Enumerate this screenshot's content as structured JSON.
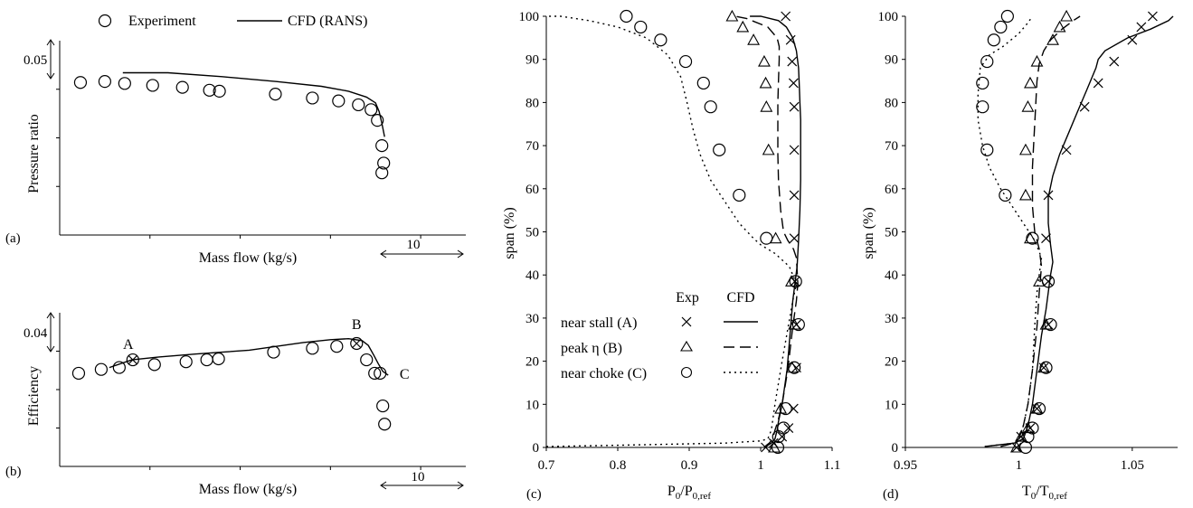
{
  "legend_top": {
    "experiment_label": "Experiment",
    "cfd_label": "CFD (RANS)"
  },
  "chart_data": [
    {
      "id": "a",
      "type": "scatter",
      "panel_label": "(a)",
      "title": "",
      "xlabel": "Mass flow (kg/s)",
      "ylabel": "Pressure ratio",
      "scale_x": "10",
      "scale_y": "0.05",
      "xlim": [
        0,
        45
      ],
      "ylim": [
        0,
        0.2
      ],
      "grid": false,
      "series": [
        {
          "name": "Experiment",
          "marker": "circle",
          "x": [
            2.3,
            5.0,
            7.2,
            10.3,
            13.6,
            16.6,
            17.7,
            23.9,
            28.0,
            30.9,
            33.1,
            34.5,
            35.2,
            35.7,
            35.9,
            35.7
          ],
          "y": [
            0.157,
            0.158,
            0.156,
            0.154,
            0.152,
            0.149,
            0.148,
            0.145,
            0.141,
            0.138,
            0.134,
            0.129,
            0.118,
            0.092,
            0.074,
            0.064
          ]
        },
        {
          "name": "CFD (RANS)",
          "line": "solid",
          "x": [
            7.0,
            12.0,
            18.0,
            24.0,
            29.0,
            32.0,
            34.0,
            35.0,
            35.4,
            35.7,
            36.0
          ],
          "y": [
            0.167,
            0.167,
            0.163,
            0.158,
            0.153,
            0.148,
            0.142,
            0.136,
            0.127,
            0.115,
            0.101
          ]
        }
      ],
      "annotations": []
    },
    {
      "id": "b",
      "type": "scatter",
      "panel_label": "(b)",
      "title": "",
      "xlabel": "Mass flow (kg/s)",
      "ylabel": "Efficiency",
      "scale_x": "10",
      "scale_y": "0.04",
      "xlim": [
        0,
        45
      ],
      "ylim": [
        0,
        0.16
      ],
      "grid": false,
      "series": [
        {
          "name": "Experiment",
          "marker": "circle",
          "x": [
            2.1,
            4.6,
            6.6,
            8.1,
            10.5,
            14.0,
            16.3,
            17.6,
            23.7,
            28.0,
            30.7,
            32.9,
            34.0,
            34.9,
            35.5,
            35.8,
            36.0
          ],
          "y": [
            0.097,
            0.101,
            0.103,
            0.111,
            0.106,
            0.109,
            0.111,
            0.112,
            0.119,
            0.123,
            0.125,
            0.128,
            0.111,
            0.097,
            0.097,
            0.063,
            0.044
          ]
        },
        {
          "name": "CFD (RANS)",
          "line": "solid",
          "x": [
            5.5,
            8.0,
            11.0,
            15.0,
            18.0,
            21.0,
            24.0,
            27.0,
            30.0,
            32.0,
            33.5,
            34.2,
            34.8,
            35.3,
            35.8,
            36.4
          ],
          "y": [
            0.103,
            0.111,
            0.114,
            0.117,
            0.119,
            0.121,
            0.125,
            0.129,
            0.132,
            0.133,
            0.131,
            0.126,
            0.116,
            0.107,
            0.099,
            0.095
          ]
        }
      ],
      "annotations": [
        {
          "label": "A",
          "x": 8.1,
          "y": 0.111
        },
        {
          "label": "B",
          "x": 32.9,
          "y": 0.128
        },
        {
          "label": "C",
          "x": 36.4,
          "y": 0.097
        }
      ]
    },
    {
      "id": "c",
      "type": "line",
      "panel_label": "(c)",
      "title": "",
      "xlabel_main": "P",
      "xlabel_sub1": "0",
      "xlabel_mid": "/P",
      "xlabel_sub2": "0,ref",
      "ylabel": "span (%)",
      "xlim": [
        0.7,
        1.1
      ],
      "ylim": [
        0,
        100
      ],
      "xticks": [
        0.7,
        0.8,
        0.9,
        1,
        1.1
      ],
      "xtick_labels": [
        "0.7",
        "0.8",
        "0.9",
        "1",
        "1.1"
      ],
      "yticks": [
        0,
        10,
        20,
        30,
        40,
        50,
        60,
        70,
        80,
        90,
        100
      ],
      "grid": false,
      "legend": {
        "position": "lower-left",
        "exp_header": "Exp",
        "cfd_header": "CFD",
        "entries": [
          "near stall (A)",
          "peak η (B)",
          "near choke (C)"
        ]
      },
      "series": [
        {
          "name": "near stall (A)",
          "kind": "experiment",
          "marker": "x",
          "x": [
            1.035,
            1.042,
            1.044,
            1.046,
            1.047,
            1.047,
            1.047,
            1.047,
            1.048,
            1.05,
            1.05,
            1.046,
            1.039,
            1.03,
            1.018,
            1.007
          ],
          "y": [
            100,
            94.5,
            89.5,
            84.5,
            79,
            69,
            58.5,
            48.5,
            38.5,
            28.5,
            18.5,
            9,
            4.5,
            2.5,
            1,
            0
          ]
        },
        {
          "name": "peak η (B)",
          "kind": "experiment",
          "marker": "triangle",
          "x": [
            0.96,
            0.975,
            0.99,
            1.005,
            1.007,
            1.008,
            1.011,
            1.021,
            1.043,
            1.047,
            1.044,
            1.028,
            1.019
          ],
          "y": [
            100,
            97.5,
            94.5,
            89.5,
            84.5,
            79,
            69,
            48.5,
            38.5,
            28.5,
            18.5,
            9,
            0
          ]
        },
        {
          "name": "near choke (C)",
          "kind": "experiment",
          "marker": "circle",
          "x": [
            0.812,
            0.832,
            0.86,
            0.895,
            0.92,
            0.93,
            0.942,
            0.97,
            1.008,
            1.049,
            1.053,
            1.047,
            1.035,
            1.032,
            1.025,
            1.024
          ],
          "y": [
            100,
            97.5,
            94.5,
            89.5,
            84.5,
            79,
            69,
            58.5,
            48.5,
            38.5,
            28.5,
            18.5,
            9,
            4.5,
            2.5,
            0
          ]
        },
        {
          "name": "near stall (A)",
          "kind": "cfd",
          "line": "solid",
          "x": [
            1.005,
            1.01,
            1.015,
            1.02,
            1.023,
            1.025,
            1.03,
            1.037,
            1.042,
            1.045,
            1.048,
            1.051,
            1.053,
            1.055,
            1.056,
            1.056,
            1.056,
            1.055,
            1.054,
            1.053,
            1.05,
            1.045,
            1.036,
            1.025,
            1.0,
            0.985
          ],
          "y": [
            0,
            0.5,
            1,
            2,
            4,
            6,
            10,
            18,
            28,
            34,
            38,
            42,
            48,
            55,
            62,
            70,
            76,
            80,
            84,
            88,
            92,
            95,
            97.5,
            99,
            100,
            100
          ]
        },
        {
          "name": "peak η (B)",
          "kind": "cfd",
          "line": "dashed",
          "x": [
            1.005,
            1.008,
            1.012,
            1.017,
            1.02,
            1.024,
            1.03,
            1.038,
            1.045,
            1.05,
            1.052,
            1.051,
            1.05,
            1.046,
            1.038,
            1.032,
            1.028,
            1.025,
            1.024,
            1.024,
            1.024,
            1.025,
            1.026,
            1.026,
            1.023,
            1.01,
            0.98,
            0.965
          ],
          "y": [
            0,
            0.5,
            1,
            2,
            4,
            6,
            10,
            18,
            28,
            34,
            38,
            41,
            44,
            46,
            48,
            50,
            55,
            62,
            68,
            74,
            80,
            85,
            90,
            93,
            95,
            97.5,
            99.5,
            100
          ]
        },
        {
          "name": "near choke (C)",
          "kind": "cfd",
          "line": "dotted",
          "x": [
            0.7,
            0.8,
            0.95,
            1.0,
            1.01,
            1.015,
            1.02,
            1.03,
            1.045,
            1.05,
            1.04,
            1.02,
            1.0,
            0.99,
            0.97,
            0.95,
            0.93,
            0.915,
            0.905,
            0.897,
            0.888,
            0.87,
            0.84,
            0.8,
            0.76,
            0.72,
            0.7
          ],
          "y": [
            0.2,
            0.5,
            1,
            1.5,
            2,
            4,
            10,
            20,
            34,
            38,
            42,
            45,
            47,
            48.5,
            52,
            57,
            62,
            68,
            74,
            80,
            86,
            91,
            95,
            97.5,
            99,
            100,
            100
          ]
        }
      ]
    },
    {
      "id": "d",
      "type": "line",
      "panel_label": "(d)",
      "title": "",
      "xlabel_main": "T",
      "xlabel_sub1": "0",
      "xlabel_mid": "/T",
      "xlabel_sub2": "0,ref",
      "ylabel": "span (%)",
      "xlim": [
        0.95,
        1.07
      ],
      "ylim": [
        0,
        100
      ],
      "xticks": [
        0.95,
        1,
        1.05
      ],
      "xtick_labels": [
        "0.95",
        "1",
        "1.05"
      ],
      "yticks": [
        0,
        10,
        20,
        30,
        40,
        50,
        60,
        70,
        80,
        90,
        100
      ],
      "grid": false,
      "series": [
        {
          "name": "near stall (A)",
          "kind": "experiment",
          "marker": "x",
          "x": [
            1.059,
            1.054,
            1.05,
            1.042,
            1.035,
            1.029,
            1.021,
            1.013,
            1.012,
            1.013,
            1.013,
            1.011,
            1.008,
            1.005,
            1.001,
            0.999
          ],
          "y": [
            100,
            97.5,
            94.5,
            89.5,
            84.5,
            79,
            69,
            58.5,
            48.5,
            38.5,
            28.5,
            18.5,
            9,
            4.5,
            2.5,
            0
          ]
        },
        {
          "name": "peak η (B)",
          "kind": "experiment",
          "marker": "triangle",
          "x": [
            1.021,
            1.018,
            1.015,
            1.008,
            1.005,
            1.004,
            1.003,
            1.003,
            1.005,
            1.009,
            1.012,
            1.011,
            1.008,
            1.004,
            1.001,
            0.999
          ],
          "y": [
            100,
            97.5,
            94.5,
            89.5,
            84.5,
            79,
            69,
            58.5,
            48.5,
            38.5,
            28.5,
            18.5,
            9,
            4.5,
            2.5,
            0
          ]
        },
        {
          "name": "near choke (C)",
          "kind": "experiment",
          "marker": "circle",
          "x": [
            0.995,
            0.992,
            0.989,
            0.986,
            0.984,
            0.984,
            0.986,
            0.994,
            1.006,
            1.013,
            1.014,
            1.012,
            1.009,
            1.006,
            1.004,
            1.003
          ],
          "y": [
            100,
            97.5,
            94.5,
            89.5,
            84.5,
            79,
            69,
            58.5,
            48.5,
            38.5,
            28.5,
            18.5,
            9,
            4.5,
            2.5,
            0
          ]
        },
        {
          "name": "near stall (A)",
          "kind": "cfd",
          "line": "solid",
          "x": [
            0.985,
            0.998,
            1.002,
            1.004,
            1.006,
            1.008,
            1.01,
            1.012,
            1.013,
            1.014,
            1.015,
            1.014,
            1.013,
            1.013,
            1.015,
            1.018,
            1.022,
            1.026,
            1.03,
            1.034,
            1.035,
            1.038,
            1.048,
            1.058,
            1.066,
            1.068
          ],
          "y": [
            0.2,
            1,
            2,
            5,
            10,
            18,
            26,
            32,
            36,
            40,
            43,
            47,
            52,
            58,
            63,
            68,
            73,
            78,
            83,
            88,
            90,
            92,
            95,
            97,
            99,
            100
          ]
        },
        {
          "name": "peak η (B)",
          "kind": "cfd",
          "line": "dashed",
          "x": [
            0.992,
            0.998,
            1.0,
            1.002,
            1.004,
            1.006,
            1.008,
            1.009,
            1.01,
            1.009,
            1.007,
            1.006,
            1.006,
            1.007,
            1.008,
            1.009,
            1.011,
            1.014,
            1.019,
            1.024,
            1.027
          ],
          "y": [
            0.2,
            1,
            2,
            5,
            10,
            18,
            28,
            36,
            42,
            46,
            50,
            56,
            65,
            75,
            85,
            89,
            92,
            94.5,
            97,
            99,
            100
          ]
        },
        {
          "name": "near choke (C)",
          "kind": "cfd",
          "line": "dotted",
          "x": [
            0.985,
            0.998,
            1.0,
            1.002,
            1.004,
            1.006,
            1.007,
            1.008,
            1.009,
            1.01,
            1.007,
            1.002,
            0.997,
            0.992,
            0.987,
            0.984,
            0.982,
            0.982,
            0.983,
            0.987,
            0.993,
            1.0,
            1.004,
            1.006
          ],
          "y": [
            0.2,
            1,
            2,
            5,
            10,
            18,
            28,
            36,
            40,
            44,
            48,
            52,
            56,
            60,
            65,
            70,
            76,
            82,
            88,
            91,
            93,
            96,
            98.5,
            100
          ]
        }
      ]
    }
  ]
}
